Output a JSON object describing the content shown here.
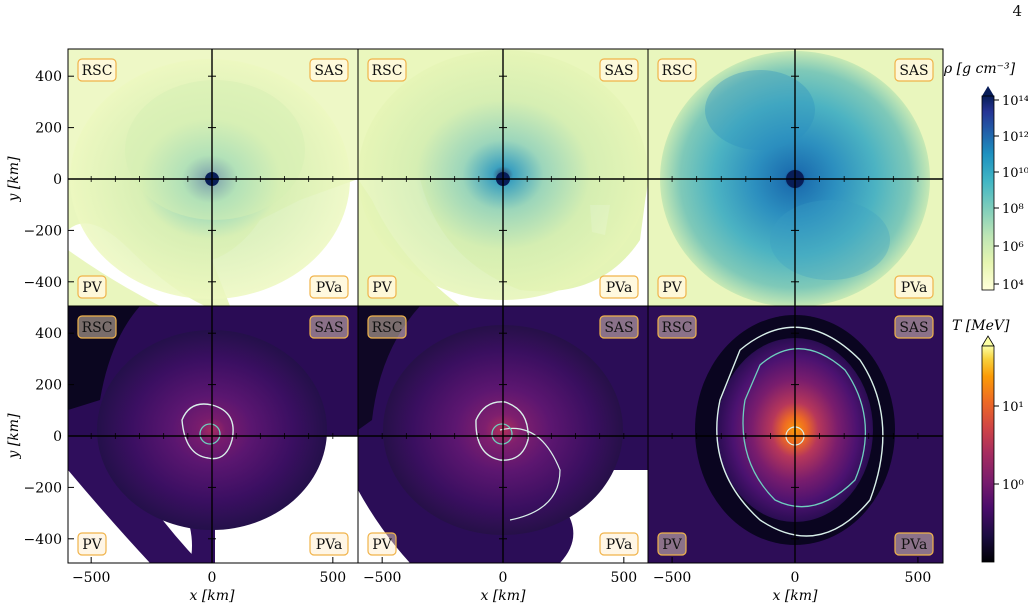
{
  "page": {
    "number": "4"
  },
  "figure": {
    "columns": 3,
    "quadrant_labels": {
      "top_left": "RSC",
      "top_right": "SAS",
      "bottom_left": "PV",
      "bottom_right": "PVa"
    },
    "axes": {
      "xlabel": "x [km]",
      "ylabel": "y [km]",
      "xticks": [
        "−500",
        "0",
        "500"
      ],
      "yticks": [
        "400",
        "200",
        "0",
        "−200",
        "−400"
      ],
      "xlim": [
        -600,
        600
      ],
      "ylim": [
        -500,
        500
      ]
    },
    "colorbars": {
      "density": {
        "label": "ρ [g cm⁻³]",
        "ticks": [
          "10¹⁴",
          "10¹²",
          "10¹⁰",
          "10⁸",
          "10⁶",
          "10⁴"
        ],
        "scale": "log",
        "colormap": "YlGnBu",
        "colors": [
          "#ffffd9",
          "#e6f5b1",
          "#bde5b5",
          "#7fcdbb",
          "#41b6c4",
          "#1d91c0",
          "#225ea8",
          "#253494",
          "#081d58"
        ]
      },
      "temperature": {
        "label": "T [MeV]",
        "ticks": [
          "10¹",
          "10⁰"
        ],
        "scale": "log",
        "colormap": "inferno",
        "colors": [
          "#000004",
          "#1b0c41",
          "#4a0c6b",
          "#781c6d",
          "#a52c60",
          "#cf4446",
          "#ed6925",
          "#fb9b06",
          "#f7d13d",
          "#fcffa4"
        ]
      }
    },
    "contour_colors": [
      "#d9f0ea",
      "#6fcfbf"
    ]
  }
}
